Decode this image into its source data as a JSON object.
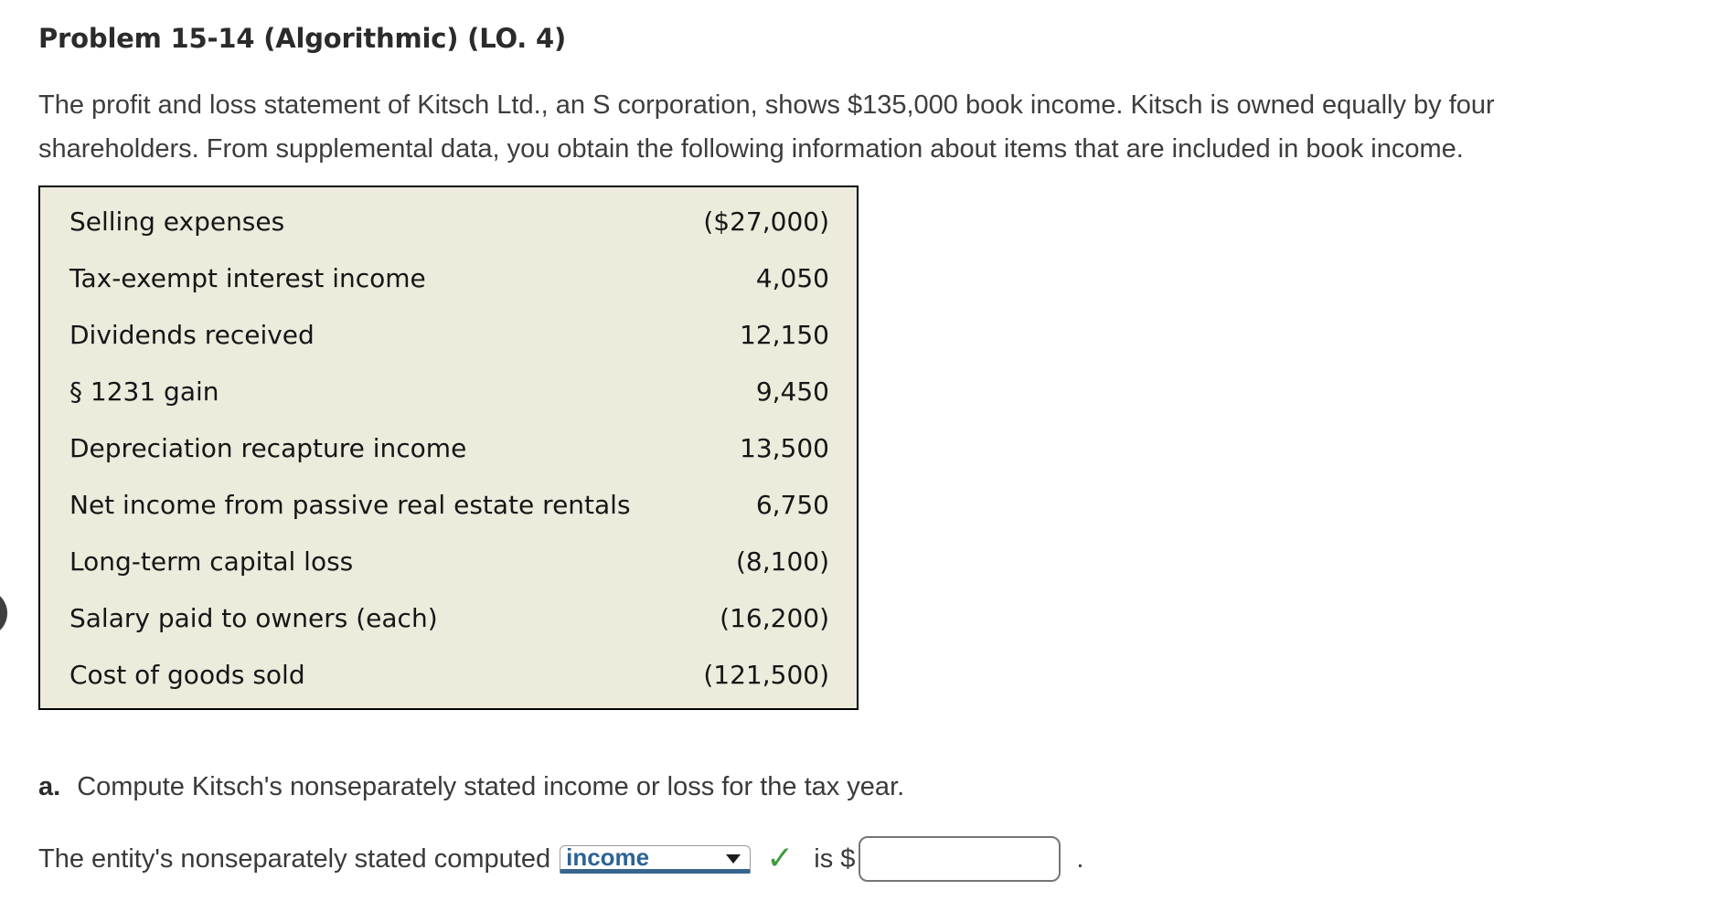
{
  "header": {
    "title": "Problem 15-14 (Algorithmic) (LO. 4)"
  },
  "intro": {
    "lines": [
      "The profit and loss statement of Kitsch Ltd., an S corporation, shows $135,000 book income. Kitsch is owned equally by four",
      "shareholders. From supplemental data, you obtain the following information about items that are included in book income."
    ]
  },
  "table": {
    "rows": [
      {
        "label": "Selling expenses",
        "amount": "($27,000)"
      },
      {
        "label": "Tax-exempt interest income",
        "amount": "4,050"
      },
      {
        "label": "Dividends received",
        "amount": "12,150"
      },
      {
        "label": "§ 1231 gain",
        "amount": "9,450"
      },
      {
        "label": "Depreciation recapture income",
        "amount": "13,500"
      },
      {
        "label": "Net income from passive real estate rentals",
        "amount": "6,750"
      },
      {
        "label": "Long-term capital loss",
        "amount": "(8,100)"
      },
      {
        "label": "Salary paid to owners (each)",
        "amount": "(16,200)"
      },
      {
        "label": "Cost of goods sold",
        "amount": "(121,500)"
      }
    ]
  },
  "question_a": {
    "marker": "a.",
    "text": "Compute Kitsch's nonseparately stated income or loss for the tax year."
  },
  "answer_line": {
    "prefix": "The entity's nonseparately stated computed",
    "dropdown_selected": "income",
    "is_label": "is $",
    "input_value": "",
    "suffix": "."
  },
  "icons": {
    "dropdown_arrow": "dropdown-arrow",
    "correct_check": "✓"
  },
  "colors": {
    "table_background": "#ecebdc",
    "table_border": "#000000",
    "dropdown_text": "#2d6396",
    "dropdown_underline": "#36658e",
    "check_green": "#3f9c3f",
    "input_border": "#767676",
    "body_text": "#3a3a3a"
  }
}
